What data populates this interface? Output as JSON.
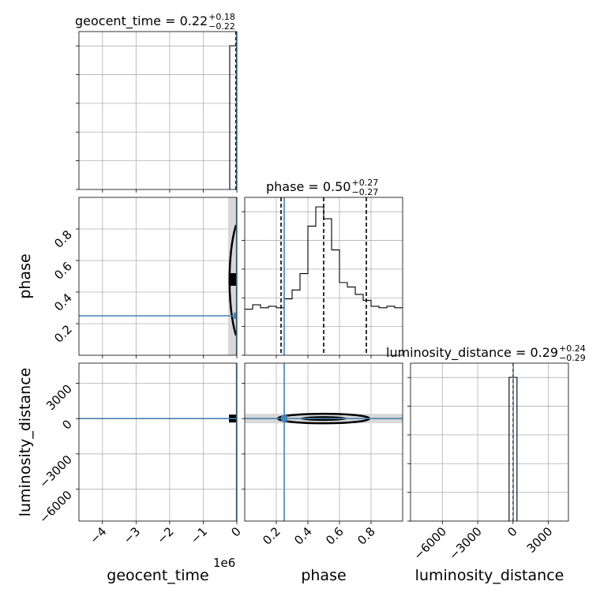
{
  "chart_data": {
    "type": "corner",
    "parameters": [
      "geocent_time",
      "phase",
      "luminosity_distance"
    ],
    "offset_label": "1e6",
    "titles": {
      "geocent_time": {
        "name": "geocent_time",
        "value": "0.22",
        "plus": "+0.18",
        "minus": "−0.22"
      },
      "phase": {
        "name": "phase",
        "value": "0.50",
        "plus": "+0.27",
        "minus": "−0.27"
      },
      "luminosity_distance": {
        "name": "luminosity_distance",
        "value": "0.29",
        "plus": "+0.24",
        "minus": "−0.29"
      }
    },
    "axis_labels": {
      "geocent_time": "geocent_time",
      "phase": "phase",
      "luminosity_distance": "luminosity_distance"
    },
    "ranges": {
      "geocent_time": [
        -4700000,
        0
      ],
      "phase": [
        0.0,
        1.0
      ],
      "luminosity_distance": [
        -8700,
        4700
      ]
    },
    "ticks": {
      "geocent_time": [
        -4,
        -3,
        -2,
        -1,
        0
      ],
      "phase": [
        0.2,
        0.4,
        0.6,
        0.8
      ],
      "luminosity_distance": [
        -6000,
        -3000,
        0,
        3000
      ]
    },
    "tick_labels": {
      "geocent_time": [
        "−4",
        "−3",
        "−2",
        "−1",
        "0"
      ],
      "phase": [
        "0.2",
        "0.4",
        "0.6",
        "0.8"
      ],
      "luminosity_distance": [
        "−6000",
        "−3000",
        "0",
        "3000"
      ]
    },
    "truths": {
      "geocent_time": 0,
      "phase": 0.25,
      "luminosity_distance": 0
    },
    "quantiles": {
      "geocent_time": [
        0,
        0.22,
        0.4
      ],
      "phase": [
        0.23,
        0.5,
        0.77
      ],
      "luminosity_distance": [
        0,
        0.29,
        0.53
      ]
    },
    "phase_histogram": {
      "bin_edges": [
        0.0,
        0.05,
        0.1,
        0.15,
        0.2,
        0.25,
        0.3,
        0.35,
        0.4,
        0.45,
        0.5,
        0.55,
        0.6,
        0.65,
        0.7,
        0.75,
        0.8,
        0.85,
        0.9,
        0.95,
        1.0
      ],
      "counts": [
        0.31,
        0.34,
        0.32,
        0.33,
        0.32,
        0.38,
        0.44,
        0.55,
        0.87,
        1.0,
        0.92,
        0.71,
        0.49,
        0.46,
        0.41,
        0.37,
        0.33,
        0.32,
        0.33,
        0.32
      ]
    },
    "color_truth": "#4682b4",
    "grid": true,
    "legend": "none"
  }
}
